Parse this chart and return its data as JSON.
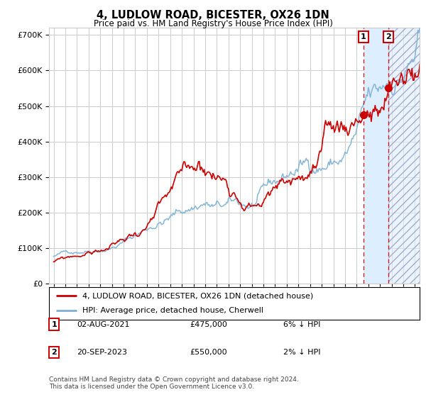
{
  "title": "4, LUDLOW ROAD, BICESTER, OX26 1DN",
  "subtitle": "Price paid vs. HM Land Registry's House Price Index (HPI)",
  "legend_label1": "4, LUDLOW ROAD, BICESTER, OX26 1DN (detached house)",
  "legend_label2": "HPI: Average price, detached house, Cherwell",
  "transaction1_date": "02-AUG-2021",
  "transaction1_price": 475000,
  "transaction1_label": "6% ↓ HPI",
  "transaction2_date": "20-SEP-2023",
  "transaction2_price": 550000,
  "transaction2_label": "2% ↓ HPI",
  "footer": "Contains HM Land Registry data © Crown copyright and database right 2024.\nThis data is licensed under the Open Government Licence v3.0.",
  "hpi_color": "#7bafd4",
  "price_color": "#cc0000",
  "marker_color": "#cc0000",
  "shade_color": "#ddeeff",
  "dashed_color": "#cc0000",
  "grid_color": "#cccccc",
  "background_color": "#ffffff",
  "ylim": [
    0,
    700000
  ],
  "yticks": [
    0,
    100000,
    200000,
    300000,
    400000,
    500000,
    600000,
    700000
  ],
  "start_year": 1995,
  "end_year": 2026,
  "transaction1_x": 2021.583,
  "transaction2_x": 2023.722
}
